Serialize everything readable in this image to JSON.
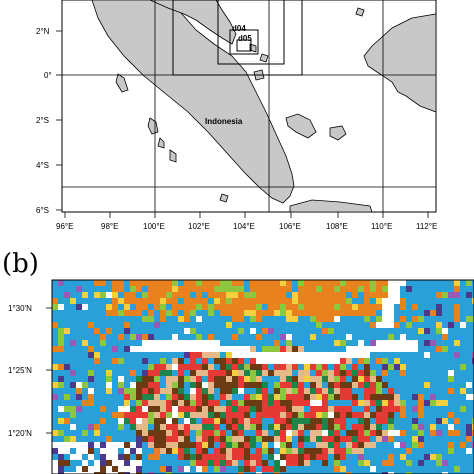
{
  "panel_a": {
    "lat_ticks": [
      "2°N",
      "0°",
      "2°S",
      "4°S",
      "6°S"
    ],
    "lon_ticks": [
      "96°E",
      "98°E",
      "100°E",
      "102°E",
      "104°E",
      "106°E",
      "108°E",
      "110°E",
      "112°E"
    ],
    "country_label": "Indonesia",
    "domain_labels": [
      "d04",
      "d05"
    ],
    "colors": {
      "land": "#c8c8c8",
      "ocean": "#ffffff",
      "outline": "#000000"
    }
  },
  "panel_b": {
    "label": "(b)",
    "lat_ticks": [
      "1°30'N",
      "1°25'N",
      "1°20'N"
    ],
    "land_use_colors": [
      "#2aa0d8",
      "#e8821e",
      "#6c3b13",
      "#e53935",
      "#8dc63f",
      "#f4d03f",
      "#4b3a8c",
      "#e6b98b",
      "#9b59b6",
      "#1e8449",
      "#ffffff"
    ]
  }
}
